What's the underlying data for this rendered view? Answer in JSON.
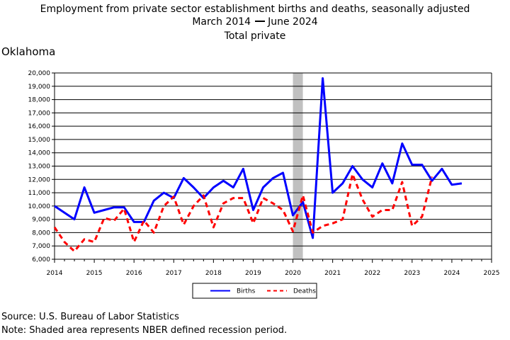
{
  "chart_data": {
    "type": "line",
    "title": "Employment from private sector establishment births and deaths, seasonally adjusted",
    "subtitle_start": "March 2014",
    "subtitle_end": "June 2024",
    "subtitle_sub": "Total private",
    "region": "Oklahoma",
    "xlim": [
      2014,
      2025
    ],
    "ylim": [
      6000,
      20000
    ],
    "x_ticks": [
      "2014",
      "2015",
      "2016",
      "2017",
      "2018",
      "2019",
      "2020",
      "2021",
      "2022",
      "2023",
      "2024",
      "2025"
    ],
    "y_ticks": [
      "6,000",
      "7,000",
      "8,000",
      "9,000",
      "10,000",
      "11,000",
      "12,000",
      "13,000",
      "14,000",
      "15,000",
      "16,000",
      "17,000",
      "18,000",
      "19,000",
      "20,000"
    ],
    "grid": true,
    "legend_position": "bottom-center",
    "recession_shade": {
      "start": 2020.0,
      "end": 2020.25,
      "color": "#c0c0c0"
    },
    "x": [
      2014.0,
      2014.25,
      2014.5,
      2014.75,
      2015.0,
      2015.25,
      2015.5,
      2015.75,
      2016.0,
      2016.25,
      2016.5,
      2016.75,
      2017.0,
      2017.25,
      2017.5,
      2017.75,
      2018.0,
      2018.25,
      2018.5,
      2018.75,
      2019.0,
      2019.25,
      2019.5,
      2019.75,
      2020.0,
      2020.25,
      2020.5,
      2020.75,
      2021.0,
      2021.25,
      2021.5,
      2021.75,
      2022.0,
      2022.25,
      2022.5,
      2022.75,
      2023.0,
      2023.25,
      2023.5,
      2023.75,
      2024.0,
      2024.25
    ],
    "series": [
      {
        "name": "Births",
        "color": "#0000ff",
        "dash": "solid",
        "values": [
          10000,
          9500,
          9000,
          11400,
          9500,
          9700,
          9900,
          9900,
          8800,
          8800,
          10400,
          11000,
          10600,
          12100,
          11400,
          10600,
          11400,
          11900,
          11400,
          12800,
          9700,
          11400,
          12100,
          12500,
          9300,
          10300,
          7600,
          19600,
          11000,
          11700,
          13000,
          12000,
          11400,
          13200,
          11700,
          14700,
          13100,
          13100,
          11900,
          12800,
          11600,
          11700
        ]
      },
      {
        "name": "Deaths",
        "color": "#ff0000",
        "dash": "dashed",
        "values": [
          8400,
          7300,
          6600,
          7500,
          7300,
          9100,
          8900,
          9800,
          7300,
          8900,
          8000,
          10000,
          10700,
          8600,
          10000,
          10800,
          8400,
          10200,
          10600,
          10600,
          8700,
          10600,
          10200,
          9700,
          8100,
          10800,
          8000,
          8500,
          8700,
          9000,
          12400,
          10500,
          9200,
          9700,
          9700,
          11800,
          8500,
          9200,
          12200,
          null,
          null,
          null
        ]
      }
    ],
    "source": "Source: U.S. Bureau of Labor Statistics",
    "note": "Note: Shaded area represents NBER defined recession period."
  }
}
